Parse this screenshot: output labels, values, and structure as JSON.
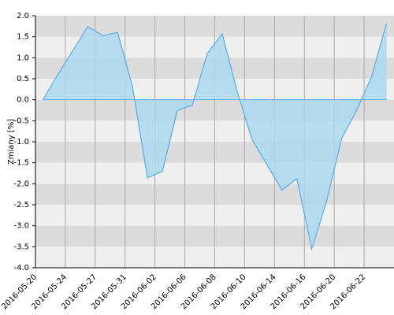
{
  "chart_data": {
    "type": "area",
    "y_label": "Zmiany [%]",
    "categories": [
      null,
      null,
      null,
      null,
      null,
      null,
      null,
      null,
      null,
      null,
      null,
      null,
      null,
      null,
      null,
      null,
      null,
      null,
      null,
      null,
      null,
      null,
      null,
      null
    ],
    "x_tick_labels": [
      "2016-05-20",
      "2016-05-24",
      "2016-05-27",
      "2016-05-31",
      "2016-06-02",
      "2016-06-06",
      "2016-06-08",
      "2016-06-10",
      "2016-06-14",
      "2016-06-16",
      "2016-06-20",
      "2016-06-22"
    ],
    "values": [
      0,
      0.6,
      1.17,
      1.74,
      1.53,
      1.6,
      0.3,
      -1.86,
      -1.7,
      -0.25,
      -0.13,
      1.1,
      1.57,
      0.2,
      -0.95,
      -1.55,
      -2.15,
      -1.88,
      -3.55,
      -2.4,
      -0.92,
      -0.25,
      0.55,
      1.82
    ],
    "color": "#5aabe8",
    "fill_color": "#aad8ee",
    "ylim": [
      -4,
      2
    ],
    "yticks": [
      {
        "value": 2,
        "label": "2.0"
      },
      {
        "value": 1.5,
        "label": "1.5"
      },
      {
        "value": 1,
        "label": "1.0"
      },
      {
        "value": 0.5,
        "label": "0.5"
      },
      {
        "value": 0,
        "label": "0.0"
      },
      {
        "value": -0.5,
        "label": "-0.5"
      },
      {
        "value": -1,
        "label": "-1.0"
      },
      {
        "value": -1.5,
        "label": "-1.5"
      },
      {
        "value": -2,
        "label": "-2.0"
      },
      {
        "value": -2.5,
        "label": "-2.5"
      },
      {
        "value": -3,
        "label": "-3.0"
      },
      {
        "value": -3.5,
        "label": "-3.5"
      },
      {
        "value": -4,
        "label": "-4.0"
      }
    ],
    "grid": true
  }
}
